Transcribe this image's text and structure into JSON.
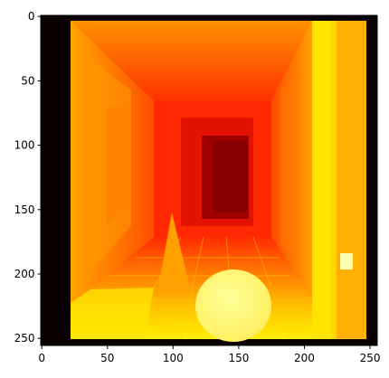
{
  "figure": {
    "type": "image-plot",
    "colormap": "hot",
    "image_size": [
      256,
      256
    ],
    "x_ticks": [
      {
        "value": 0,
        "label": "0"
      },
      {
        "value": 50,
        "label": "50"
      },
      {
        "value": 100,
        "label": "100"
      },
      {
        "value": 150,
        "label": "150"
      },
      {
        "value": 200,
        "label": "200"
      },
      {
        "value": 250,
        "label": "250"
      }
    ],
    "y_ticks": [
      {
        "value": 0,
        "label": "0"
      },
      {
        "value": 50,
        "label": "50"
      },
      {
        "value": 100,
        "label": "100"
      },
      {
        "value": 150,
        "label": "150"
      },
      {
        "value": 200,
        "label": "200"
      },
      {
        "value": 250,
        "label": "250"
      }
    ],
    "colors": {
      "background": "#ffffff",
      "border_black": "#0a0000",
      "deep_red": "#8a0000",
      "red": "#e01000",
      "orange_red": "#ff4a00",
      "orange": "#ff8c00",
      "amber": "#ffb000",
      "yellow": "#ffe000",
      "light_yellow": "#fff070",
      "pale_yellow": "#ffff90"
    }
  }
}
